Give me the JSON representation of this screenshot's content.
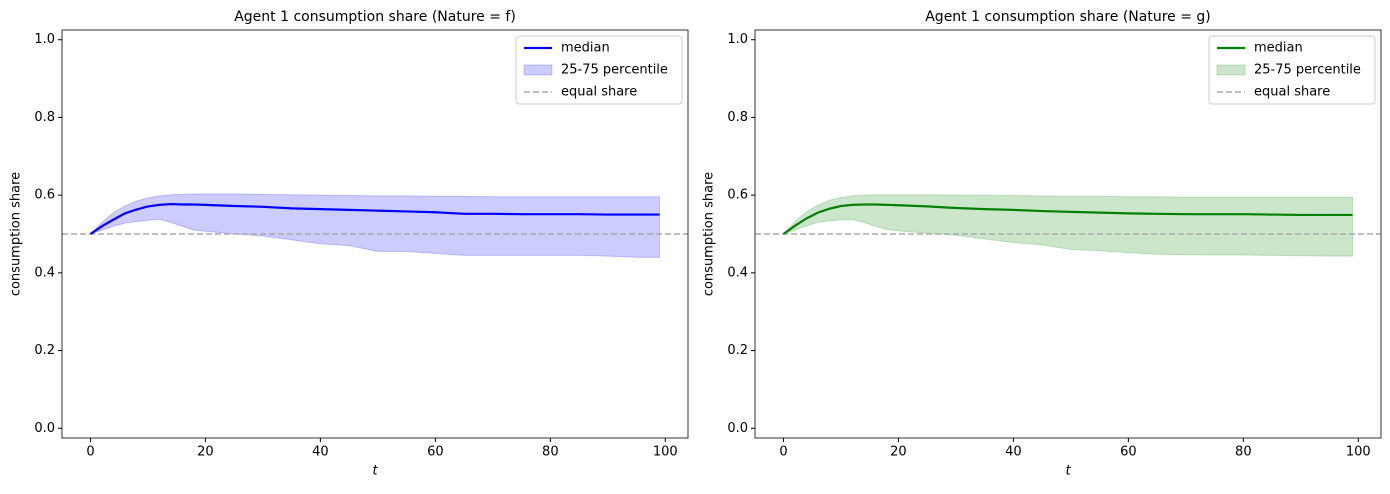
{
  "chart_data": [
    {
      "type": "line",
      "title": "Agent 1 consumption share (Nature = f)",
      "xlabel": "t",
      "ylabel": "consumption share",
      "x": [
        0,
        2,
        4,
        6,
        8,
        10,
        12,
        14,
        16,
        18,
        20,
        25,
        30,
        35,
        40,
        45,
        50,
        55,
        60,
        65,
        70,
        75,
        80,
        85,
        90,
        95,
        99
      ],
      "series": [
        {
          "name": "median",
          "color": "#0000ff",
          "values": [
            0.5,
            0.52,
            0.537,
            0.553,
            0.563,
            0.571,
            0.575,
            0.577,
            0.576,
            0.576,
            0.575,
            0.572,
            0.57,
            0.566,
            0.564,
            0.562,
            0.56,
            0.558,
            0.556,
            0.552,
            0.552,
            0.551,
            0.551,
            0.551,
            0.55,
            0.55,
            0.55
          ]
        },
        {
          "name": "25-75 percentile",
          "color": "#0000ff",
          "lower": [
            0.5,
            0.51,
            0.52,
            0.528,
            0.532,
            0.535,
            0.538,
            0.53,
            0.52,
            0.51,
            0.507,
            0.5,
            0.495,
            0.485,
            0.475,
            0.47,
            0.455,
            0.455,
            0.45,
            0.445,
            0.445,
            0.445,
            0.445,
            0.445,
            0.443,
            0.44,
            0.44
          ],
          "upper": [
            0.5,
            0.53,
            0.555,
            0.572,
            0.585,
            0.593,
            0.598,
            0.601,
            0.602,
            0.603,
            0.603,
            0.603,
            0.602,
            0.601,
            0.6,
            0.599,
            0.598,
            0.598,
            0.597,
            0.597,
            0.596,
            0.596,
            0.596,
            0.596,
            0.596,
            0.596,
            0.596
          ]
        }
      ],
      "hline": {
        "name": "equal share",
        "value": 0.5,
        "color": "#aaaaaa"
      },
      "xlim": [
        -4.95,
        103.95
      ],
      "ylim": [
        -0.025,
        1.025
      ],
      "xticks": [
        0,
        20,
        40,
        60,
        80,
        100
      ],
      "yticks": [
        {
          "value": 0,
          "label": "0.0"
        },
        0.2,
        0.4,
        0.6,
        0.8,
        {
          "value": 1,
          "label": "1.0"
        }
      ],
      "legend": "upper right"
    },
    {
      "type": "line",
      "title": "Agent 1 consumption share (Nature = g)",
      "xlabel": "t",
      "ylabel": "consumption share",
      "x": [
        0,
        2,
        4,
        6,
        8,
        10,
        12,
        14,
        16,
        18,
        20,
        25,
        30,
        35,
        40,
        45,
        50,
        55,
        60,
        65,
        70,
        75,
        80,
        85,
        90,
        95,
        99
      ],
      "series": [
        {
          "name": "median",
          "color": "#008000",
          "values": [
            0.5,
            0.521,
            0.54,
            0.555,
            0.565,
            0.572,
            0.575,
            0.576,
            0.576,
            0.575,
            0.574,
            0.571,
            0.567,
            0.564,
            0.562,
            0.559,
            0.557,
            0.555,
            0.553,
            0.552,
            0.551,
            0.551,
            0.551,
            0.55,
            0.549,
            0.549,
            0.549
          ]
        },
        {
          "name": "25-75 percentile",
          "color": "#008000",
          "lower": [
            0.5,
            0.51,
            0.521,
            0.53,
            0.534,
            0.536,
            0.537,
            0.53,
            0.52,
            0.512,
            0.508,
            0.502,
            0.497,
            0.487,
            0.478,
            0.472,
            0.46,
            0.457,
            0.452,
            0.448,
            0.447,
            0.446,
            0.446,
            0.445,
            0.444,
            0.443,
            0.443
          ],
          "upper": [
            0.5,
            0.532,
            0.557,
            0.574,
            0.587,
            0.594,
            0.598,
            0.6,
            0.601,
            0.601,
            0.601,
            0.601,
            0.6,
            0.6,
            0.599,
            0.598,
            0.597,
            0.597,
            0.596,
            0.596,
            0.595,
            0.595,
            0.595,
            0.595,
            0.595,
            0.595,
            0.595
          ]
        }
      ],
      "hline": {
        "name": "equal share",
        "value": 0.5,
        "color": "#aaaaaa"
      },
      "xlim": [
        -4.95,
        103.95
      ],
      "ylim": [
        -0.025,
        1.025
      ],
      "xticks": [
        0,
        20,
        40,
        60,
        80,
        100
      ],
      "yticks": [
        {
          "value": 0,
          "label": "0.0"
        },
        0.2,
        0.4,
        0.6,
        0.8,
        {
          "value": 1,
          "label": "1.0"
        }
      ],
      "legend": "upper right"
    }
  ]
}
